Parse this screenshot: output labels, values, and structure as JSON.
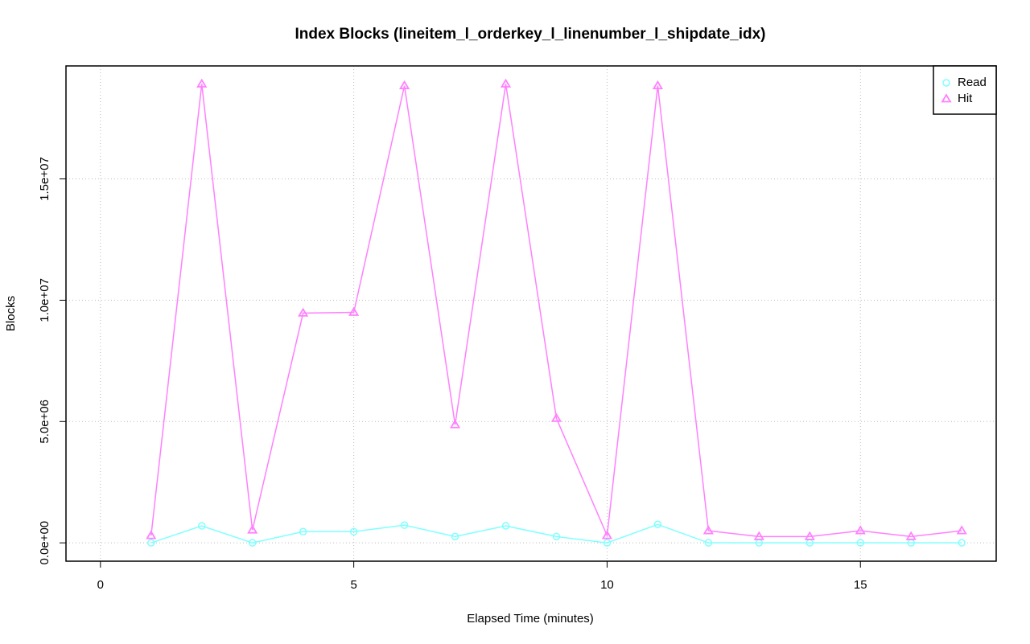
{
  "chart_data": {
    "type": "line",
    "title": "Index Blocks (lineitem_l_orderkey_l_linenumber_l_shipdate_idx)",
    "x_label": "Elapsed Time (minutes)",
    "y_label": "Blocks",
    "x": [
      1,
      2,
      3,
      4,
      5,
      6,
      7,
      8,
      9,
      10,
      11,
      12,
      13,
      14,
      15,
      16,
      17
    ],
    "series": [
      {
        "name": "Read",
        "color": "#80ffff",
        "marker": "circle",
        "values": [
          0,
          700000,
          0,
          460000,
          460000,
          730000,
          260000,
          700000,
          260000,
          0,
          760000,
          0,
          0,
          0,
          0,
          0,
          0
        ]
      },
      {
        "name": "Hit",
        "color": "#ff80ff",
        "marker": "triangle",
        "values": [
          300000,
          18910000,
          530000,
          9470000,
          9500000,
          18840000,
          4870000,
          18910000,
          5130000,
          300000,
          18840000,
          500000,
          260000,
          260000,
          500000,
          260000,
          500000
        ]
      }
    ],
    "xlim": [
      -0.68,
      17.68
    ],
    "ylim": [
      -756000,
      19656000
    ],
    "xticks": [
      0,
      5,
      10,
      15
    ],
    "yticks": [
      {
        "value": 0,
        "label": "0.0e+00"
      },
      {
        "value": 5000000,
        "label": "5.0e+06"
      },
      {
        "value": 10000000,
        "label": "1.0e+07"
      },
      {
        "value": 15000000,
        "label": "1.5e+07"
      }
    ],
    "grid": true,
    "legend": "topright"
  }
}
